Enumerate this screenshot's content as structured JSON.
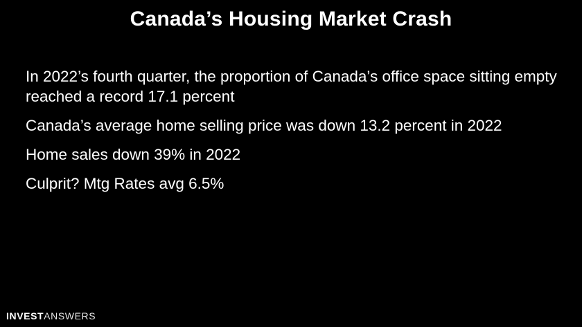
{
  "slide": {
    "title": "Canada’s Housing Market Crash",
    "bullets": [
      "In 2022’s fourth quarter, the proportion of Canada’s office space sitting empty reached a record 17.1 percent",
      "Canada’s average home selling price was down 13.2 percent in 2022",
      "Home sales down 39% in 2022",
      "Culprit? Mtg Rates avg 6.5%"
    ]
  },
  "logo": {
    "bold_part": "INVEST",
    "light_part": "ANSWERS"
  },
  "colors": {
    "background": "#000000",
    "text": "#ffffff"
  }
}
